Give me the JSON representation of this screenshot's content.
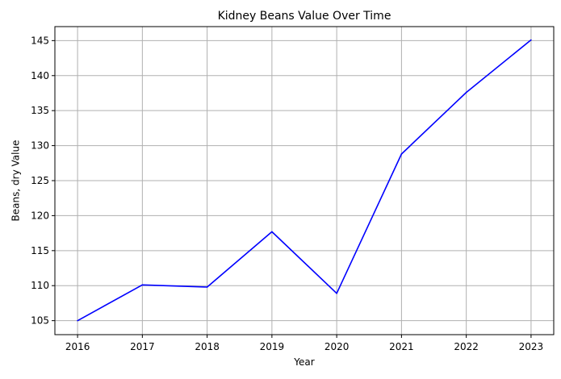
{
  "chart_data": {
    "type": "line",
    "title": "Kidney Beans Value Over Time",
    "xlabel": "Year",
    "ylabel": "Beans, dry Value",
    "x": [
      2016,
      2017,
      2018,
      2019,
      2020,
      2021,
      2022,
      2023
    ],
    "series": [
      {
        "values": [
          105.0,
          110.1,
          109.8,
          117.7,
          108.9,
          128.8,
          137.6,
          145.1
        ],
        "color": "#0000ff"
      }
    ],
    "x_ticks": [
      "2016",
      "2017",
      "2018",
      "2019",
      "2020",
      "2021",
      "2022",
      "2023"
    ],
    "y_ticks": [
      "105",
      "110",
      "115",
      "120",
      "125",
      "130",
      "135",
      "140",
      "145"
    ],
    "xlim": [
      2015.65,
      2023.35
    ],
    "ylim": [
      103.0,
      147.0
    ],
    "grid": true,
    "grid_color": "#b0b0b0"
  }
}
